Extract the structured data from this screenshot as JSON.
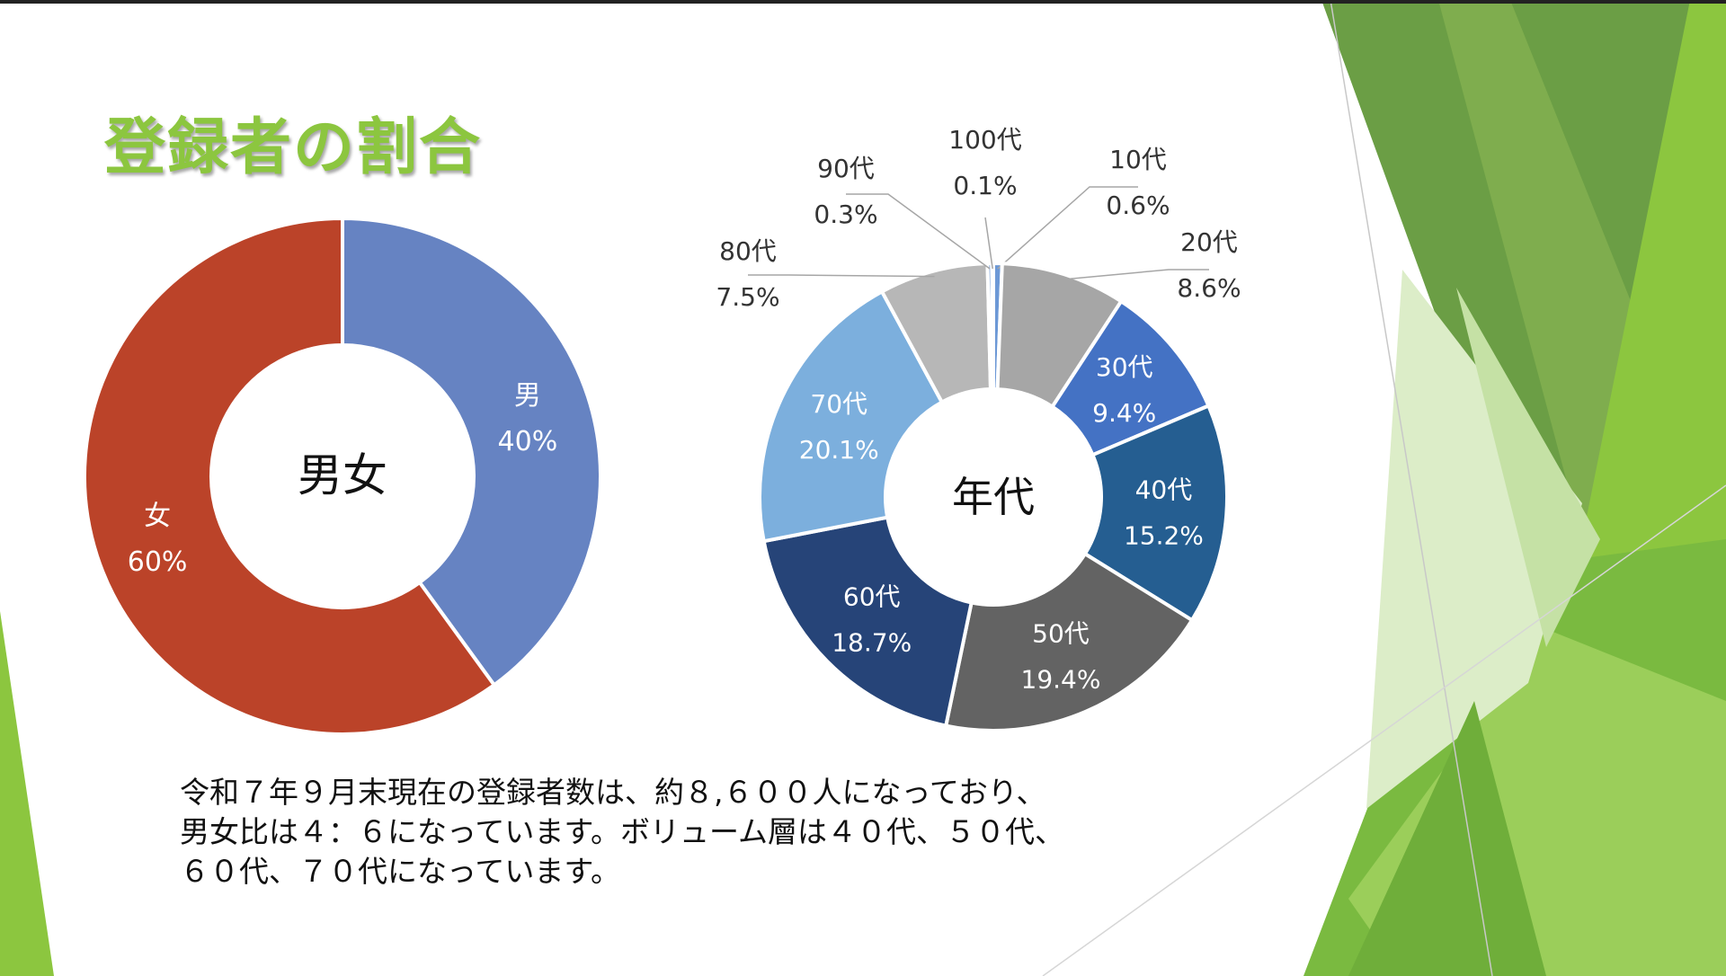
{
  "slide": {
    "title": "登録者の割合",
    "caption_lines": [
      "令和７年９月末現在の登録者数は、約８,６００人になっており、",
      "男女比は４：６になっています。ボリューム層は４０代、５０代、",
      "６０代、７０代になっています。"
    ],
    "theme_colors": {
      "title": "#8cc63f",
      "accent_dark": "#5f9a3a",
      "accent_light": "#8cc63f"
    }
  },
  "chart_data": [
    {
      "type": "pie",
      "variant": "donut",
      "center_label": "男女",
      "slices": [
        {
          "label": "男",
          "value": 40,
          "value_label": "40%",
          "color": "#6683c2"
        },
        {
          "label": "女",
          "value": 60,
          "value_label": "60%",
          "color": "#bb4329"
        }
      ]
    },
    {
      "type": "pie",
      "variant": "donut",
      "center_label": "年代",
      "slices": [
        {
          "label": "10代",
          "value": 0.6,
          "value_label": "0.6%",
          "color": "#6c98d6",
          "label_position": "outside"
        },
        {
          "label": "20代",
          "value": 8.6,
          "value_label": "8.6%",
          "color": "#a6a6a6",
          "label_position": "outside"
        },
        {
          "label": "30代",
          "value": 9.4,
          "value_label": "9.4%",
          "color": "#4472c4",
          "label_position": "inside"
        },
        {
          "label": "40代",
          "value": 15.2,
          "value_label": "15.2%",
          "color": "#255e91",
          "label_position": "inside"
        },
        {
          "label": "50代",
          "value": 19.4,
          "value_label": "19.4%",
          "color": "#636363",
          "label_position": "inside"
        },
        {
          "label": "60代",
          "value": 18.7,
          "value_label": "18.7%",
          "color": "#264478",
          "label_position": "inside"
        },
        {
          "label": "70代",
          "value": 20.1,
          "value_label": "20.1%",
          "color": "#7cafdd",
          "label_position": "inside"
        },
        {
          "label": "80代",
          "value": 7.5,
          "value_label": "7.5%",
          "color": "#b7b7b7",
          "label_position": "outside"
        },
        {
          "label": "90代",
          "value": 0.3,
          "value_label": "0.3%",
          "color": "#6c98d6",
          "label_position": "outside"
        },
        {
          "label": "100代",
          "value": 0.1,
          "value_label": "0.1%",
          "color": "#9fb9e0",
          "label_position": "outside"
        }
      ]
    }
  ]
}
